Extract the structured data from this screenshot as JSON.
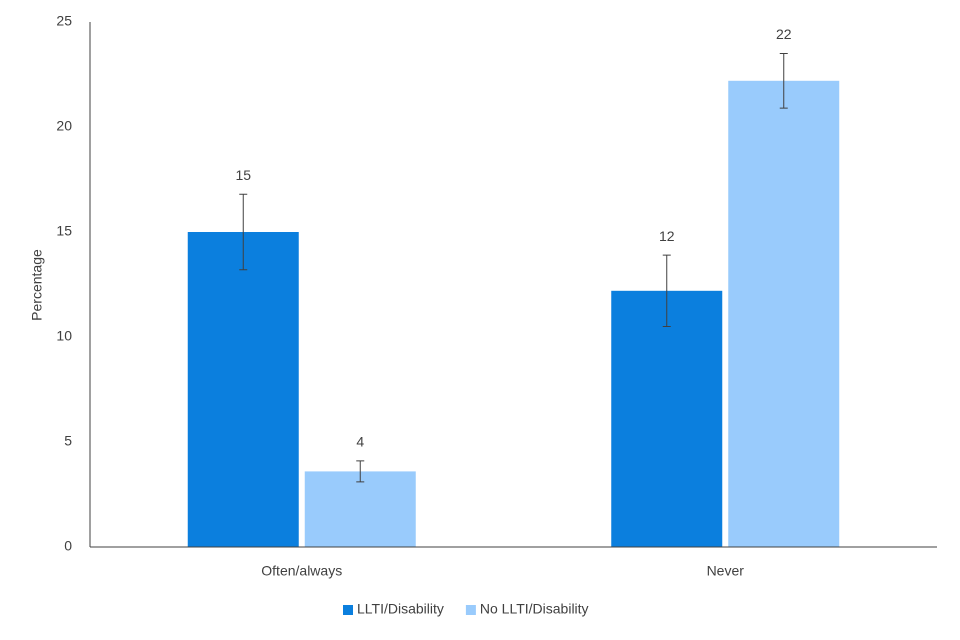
{
  "chart_data": {
    "type": "bar",
    "y_label": "Percentage",
    "categories": [
      "Often/always",
      "Never"
    ],
    "series": [
      {
        "name": "LLTI/Disability",
        "color": "#0b7fde",
        "values": [
          15.0,
          12.2
        ],
        "errors": [
          1.8,
          1.7
        ],
        "value_labels": [
          "15",
          "12"
        ]
      },
      {
        "name": "No LLTI/Disability",
        "color": "#99cbfc",
        "values": [
          3.6,
          22.2
        ],
        "errors": [
          0.5,
          1.3
        ],
        "value_labels": [
          "4",
          "22"
        ]
      }
    ],
    "ylim": [
      0,
      25
    ],
    "yticks": [
      0,
      5,
      10,
      15,
      20,
      25
    ],
    "grid": false,
    "legend": "bottom"
  }
}
